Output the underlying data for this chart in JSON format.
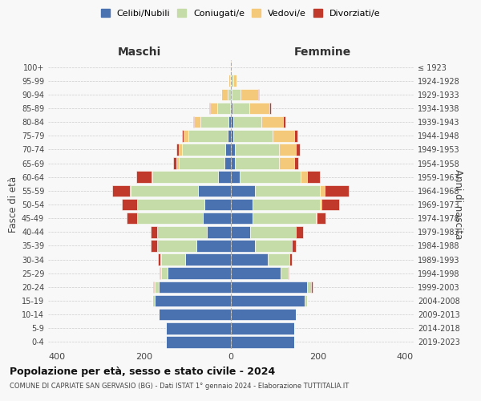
{
  "age_groups": [
    "0-4",
    "5-9",
    "10-14",
    "15-19",
    "20-24",
    "25-29",
    "30-34",
    "35-39",
    "40-44",
    "45-49",
    "50-54",
    "55-59",
    "60-64",
    "65-69",
    "70-74",
    "75-79",
    "80-84",
    "85-89",
    "90-94",
    "95-99",
    "100+"
  ],
  "birth_years": [
    "2019-2023",
    "2014-2018",
    "2009-2013",
    "2004-2008",
    "1999-2003",
    "1994-1998",
    "1989-1993",
    "1984-1988",
    "1979-1983",
    "1974-1978",
    "1969-1973",
    "1964-1968",
    "1959-1963",
    "1954-1958",
    "1949-1953",
    "1944-1948",
    "1939-1943",
    "1934-1938",
    "1929-1933",
    "1924-1928",
    "≤ 1923"
  ],
  "maschi": {
    "celibi": [
      150,
      150,
      165,
      175,
      165,
      145,
      105,
      80,
      55,
      65,
      60,
      75,
      30,
      15,
      12,
      8,
      5,
      2,
      0,
      0,
      0
    ],
    "coniugati": [
      0,
      0,
      0,
      5,
      10,
      15,
      55,
      90,
      115,
      150,
      155,
      155,
      150,
      105,
      100,
      90,
      65,
      30,
      8,
      2,
      0
    ],
    "vedovi": [
      0,
      0,
      0,
      0,
      2,
      2,
      2,
      0,
      0,
      0,
      0,
      3,
      2,
      5,
      8,
      10,
      15,
      15,
      15,
      3,
      0
    ],
    "divorziati": [
      0,
      0,
      0,
      0,
      2,
      2,
      5,
      15,
      15,
      25,
      35,
      40,
      35,
      8,
      5,
      5,
      2,
      2,
      0,
      0,
      0
    ]
  },
  "femmine": {
    "nubili": [
      145,
      145,
      150,
      170,
      175,
      115,
      85,
      55,
      45,
      50,
      50,
      55,
      20,
      10,
      10,
      5,
      5,
      3,
      2,
      0,
      0
    ],
    "coniugate": [
      0,
      0,
      0,
      5,
      10,
      15,
      50,
      85,
      105,
      145,
      155,
      150,
      140,
      100,
      100,
      90,
      65,
      40,
      20,
      5,
      0
    ],
    "vedove": [
      0,
      0,
      0,
      0,
      0,
      0,
      0,
      0,
      0,
      2,
      3,
      10,
      15,
      35,
      40,
      50,
      50,
      45,
      40,
      8,
      2
    ],
    "divorziate": [
      0,
      0,
      0,
      0,
      2,
      2,
      5,
      10,
      15,
      20,
      40,
      55,
      30,
      10,
      8,
      8,
      5,
      5,
      2,
      0,
      0
    ]
  },
  "colors": {
    "celibi": "#4a72b0",
    "coniugati": "#c5dba8",
    "vedovi": "#f5c97a",
    "divorziati": "#c0392b"
  },
  "xlim": 420,
  "title": "Popolazione per età, sesso e stato civile - 2024",
  "subtitle": "COMUNE DI CAPRIATE SAN GERVASIO (BG) - Dati ISTAT 1° gennaio 2024 - Elaborazione TUTTITALIA.IT",
  "xlabel_left": "Maschi",
  "xlabel_right": "Femmine",
  "ylabel_left": "Fasce di età",
  "ylabel_right": "Anni di nascita",
  "legend_labels": [
    "Celibi/Nubili",
    "Coniugati/e",
    "Vedovi/e",
    "Divorziati/e"
  ],
  "background_color": "#f8f8f8"
}
